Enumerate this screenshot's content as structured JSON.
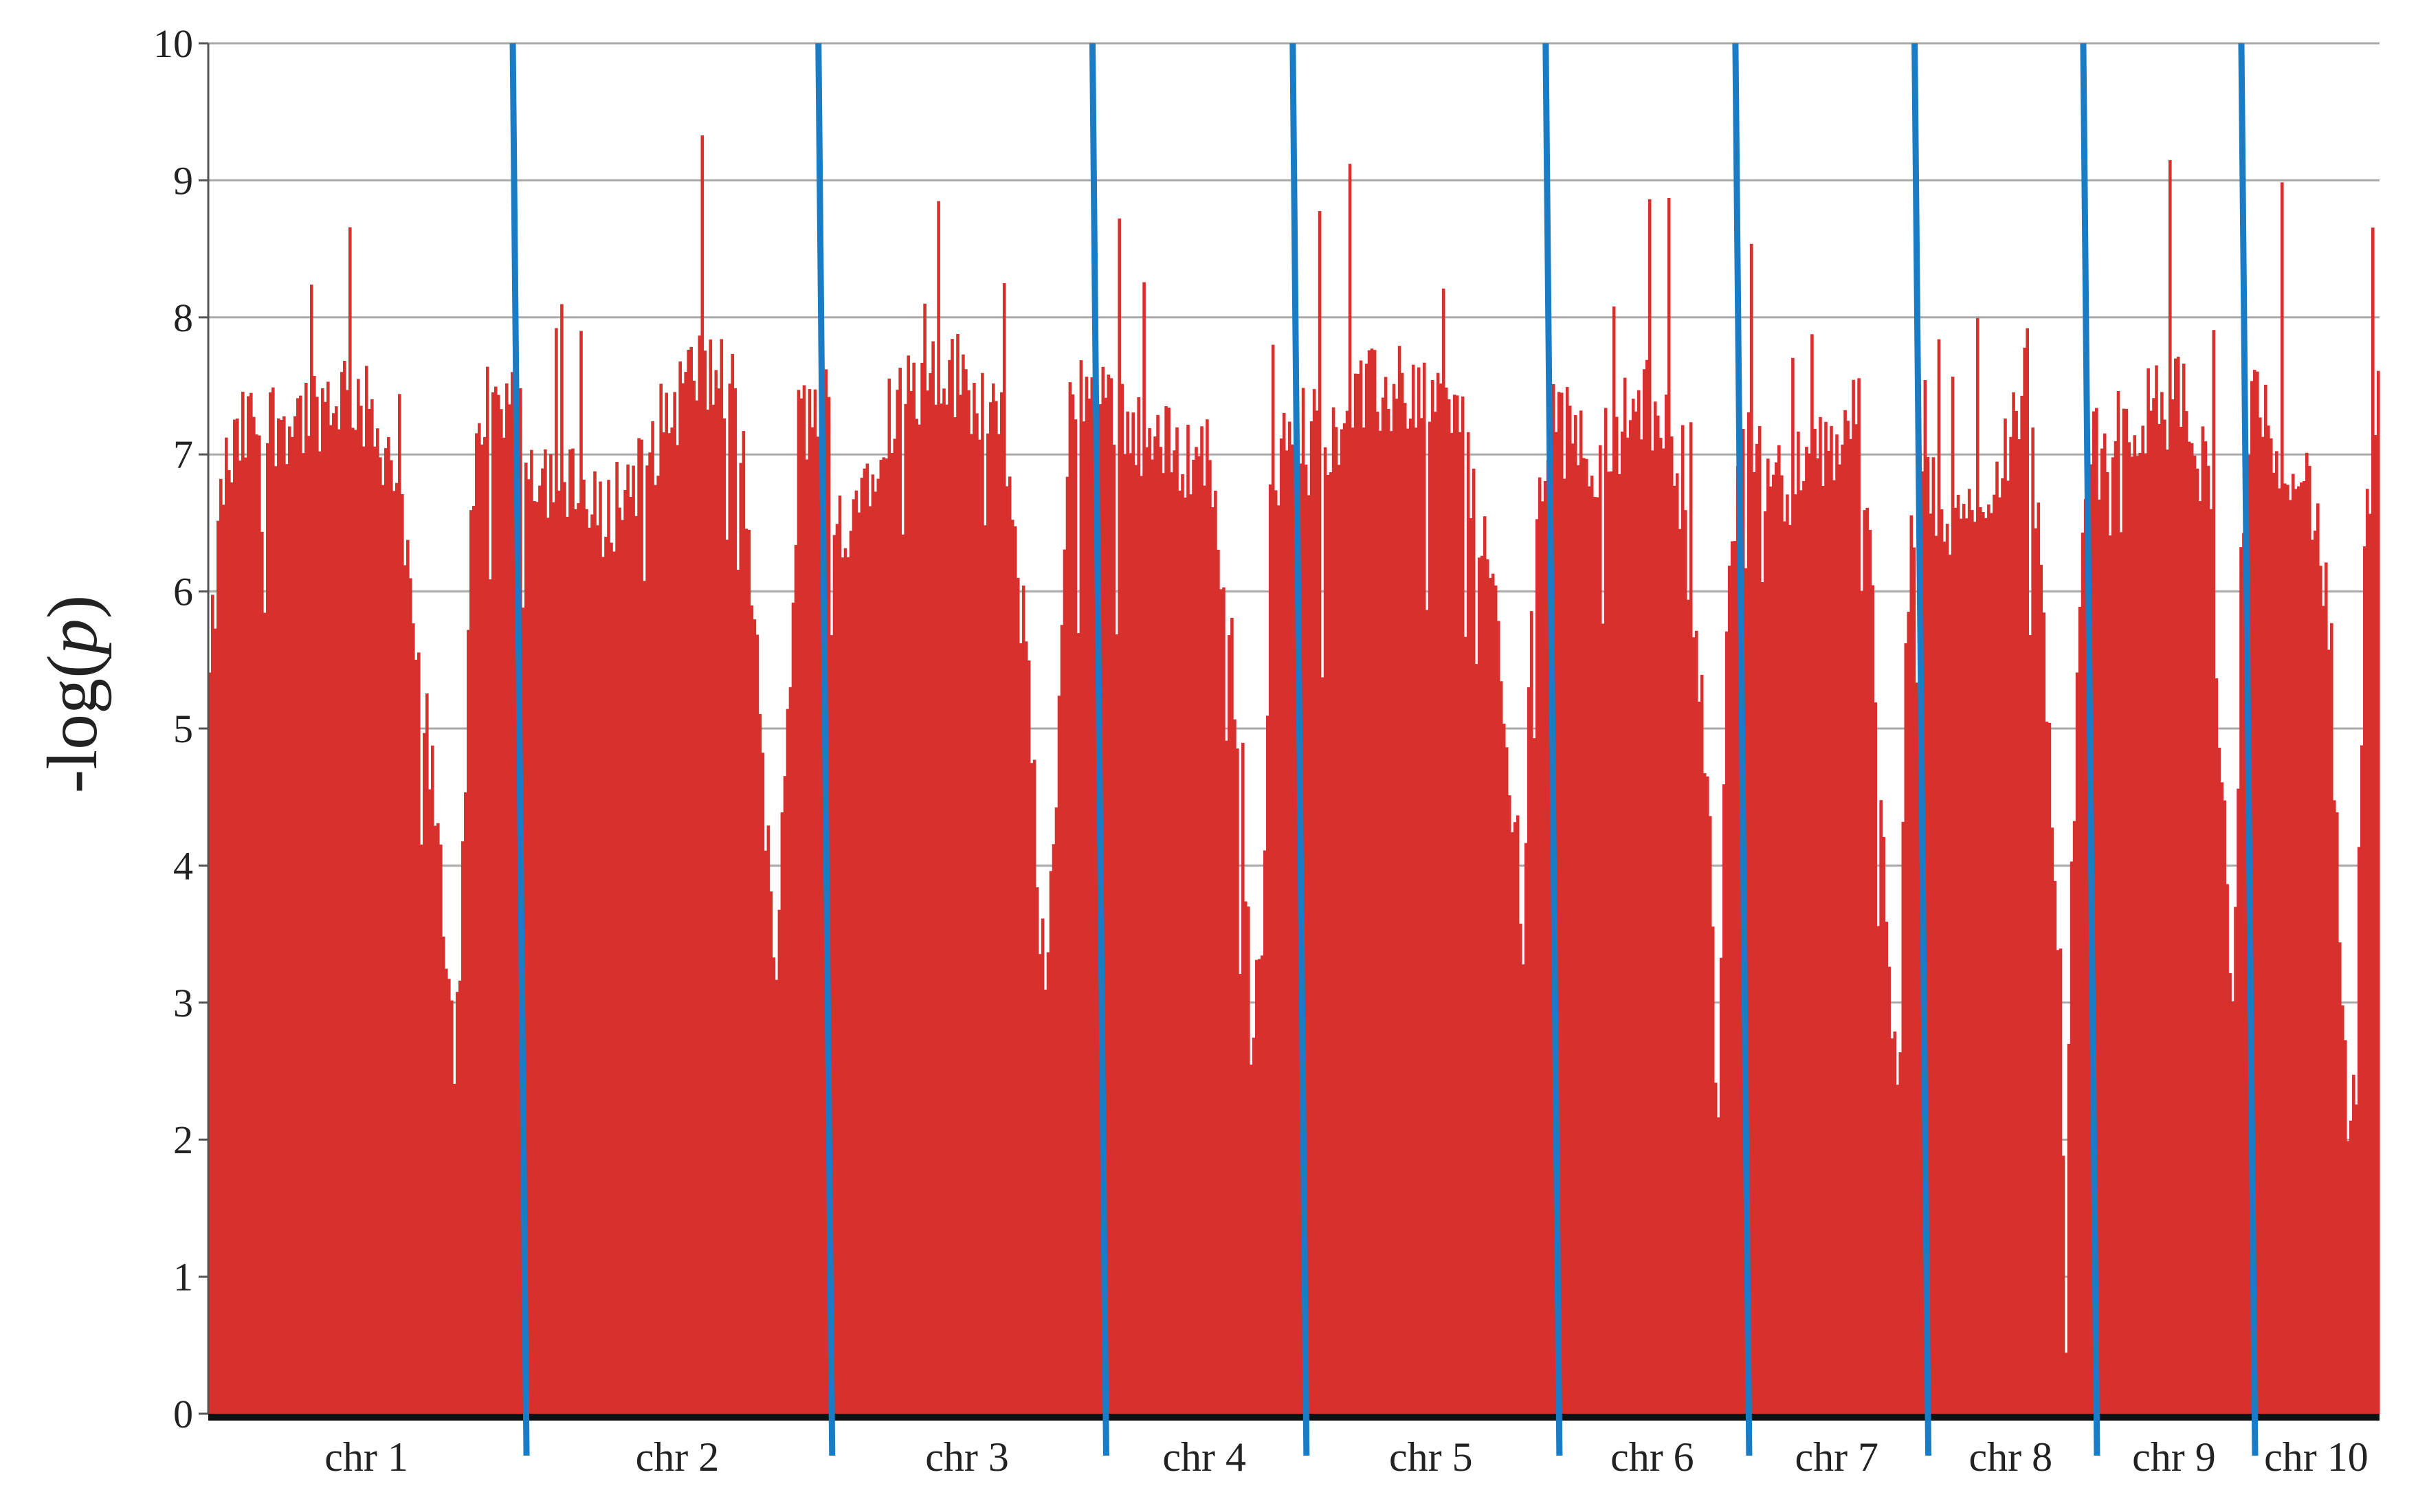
{
  "chart_data": {
    "type": "bar",
    "title": "",
    "xlabel": "",
    "ylabel_prefix": "-log(",
    "ylabel_var": "p",
    "ylabel_suffix": ")",
    "ylim": [
      0,
      10
    ],
    "yticks": [
      "0",
      "1",
      "2",
      "3",
      "4",
      "5",
      "6",
      "7",
      "8",
      "9",
      "10"
    ],
    "grid": "horizontal",
    "legend": "none",
    "colors": {
      "bars": "#d8302c",
      "boundaries": "#1a7cc4",
      "grid": "#a9a9a9",
      "baseline": "#111111"
    },
    "chromosomes": [
      "chr 1",
      "chr 2",
      "chr 3",
      "chr 4",
      "chr 5",
      "chr 6",
      "chr 7",
      "chr 8",
      "chr 9",
      "chr 10"
    ],
    "chromosome_lengths": [
      30,
      29,
      26,
      19,
      24,
      18,
      17,
      16,
      15,
      12
    ],
    "profile": [
      [
        [
          0,
          5.3
        ],
        [
          0.04,
          6.8
        ],
        [
          0.12,
          7.2
        ],
        [
          0.3,
          7.3
        ],
        [
          0.45,
          7.5
        ],
        [
          0.58,
          7.0
        ],
        [
          0.66,
          5.6
        ],
        [
          0.72,
          4.4
        ],
        [
          0.78,
          2.7
        ],
        [
          0.8,
          3.5
        ],
        [
          0.84,
          6.8
        ],
        [
          0.92,
          7.2
        ],
        [
          1,
          7.3
        ]
      ],
      [
        [
          0,
          7.0
        ],
        [
          0.12,
          6.8
        ],
        [
          0.25,
          6.5
        ],
        [
          0.4,
          7.0
        ],
        [
          0.55,
          7.6
        ],
        [
          0.7,
          7.5
        ],
        [
          0.77,
          5.2
        ],
        [
          0.82,
          3.2
        ],
        [
          0.86,
          4.6
        ],
        [
          0.9,
          7.2
        ],
        [
          1,
          7.4
        ]
      ],
      [
        [
          0,
          6.4
        ],
        [
          0.1,
          6.7
        ],
        [
          0.2,
          7.3
        ],
        [
          0.45,
          7.6
        ],
        [
          0.62,
          7.3
        ],
        [
          0.72,
          5.5
        ],
        [
          0.78,
          3.2
        ],
        [
          0.82,
          4.2
        ],
        [
          0.88,
          7.3
        ],
        [
          1,
          7.6
        ]
      ],
      [
        [
          0,
          7.4
        ],
        [
          0.15,
          7.2
        ],
        [
          0.35,
          7.0
        ],
        [
          0.52,
          7.0
        ],
        [
          0.63,
          5.8
        ],
        [
          0.7,
          4.5
        ],
        [
          0.74,
          2.5
        ],
        [
          0.8,
          3.8
        ],
        [
          0.86,
          6.9
        ],
        [
          1,
          7.2
        ]
      ],
      [
        [
          0,
          7.0
        ],
        [
          0.2,
          7.4
        ],
        [
          0.45,
          7.5
        ],
        [
          0.62,
          7.2
        ],
        [
          0.75,
          6.0
        ],
        [
          0.83,
          4.2
        ],
        [
          0.87,
          3.5
        ],
        [
          0.91,
          6.5
        ],
        [
          1,
          7.4
        ]
      ],
      [
        [
          0,
          7.2
        ],
        [
          0.2,
          7.0
        ],
        [
          0.45,
          7.4
        ],
        [
          0.6,
          7.2
        ],
        [
          0.72,
          6.0
        ],
        [
          0.8,
          4.5
        ],
        [
          0.85,
          2.0
        ],
        [
          0.9,
          6.2
        ],
        [
          1,
          7.4
        ]
      ],
      [
        [
          0,
          7.0
        ],
        [
          0.2,
          6.8
        ],
        [
          0.45,
          7.0
        ],
        [
          0.62,
          7.4
        ],
        [
          0.72,
          5.5
        ],
        [
          0.8,
          3.0
        ],
        [
          0.85,
          2.2
        ],
        [
          0.9,
          6.0
        ],
        [
          1,
          7.3
        ]
      ],
      [
        [
          0,
          6.8
        ],
        [
          0.2,
          6.4
        ],
        [
          0.45,
          7.0
        ],
        [
          0.6,
          7.6
        ],
        [
          0.7,
          5.8
        ],
        [
          0.78,
          3.5
        ],
        [
          0.83,
          1.6
        ],
        [
          0.88,
          4.5
        ],
        [
          0.95,
          6.8
        ],
        [
          1,
          7.0
        ]
      ],
      [
        [
          0,
          7.0
        ],
        [
          0.3,
          7.3
        ],
        [
          0.55,
          7.4
        ],
        [
          0.72,
          6.8
        ],
        [
          0.82,
          4.5
        ],
        [
          0.88,
          2.6
        ],
        [
          0.93,
          6.0
        ],
        [
          1,
          7.4
        ]
      ],
      [
        [
          0,
          7.3
        ],
        [
          0.3,
          7.0
        ],
        [
          0.5,
          6.6
        ],
        [
          0.62,
          5.5
        ],
        [
          0.7,
          3.0
        ],
        [
          0.76,
          2.1
        ],
        [
          0.82,
          2.3
        ],
        [
          0.88,
          6.0
        ],
        [
          1,
          7.6
        ]
      ]
    ]
  }
}
